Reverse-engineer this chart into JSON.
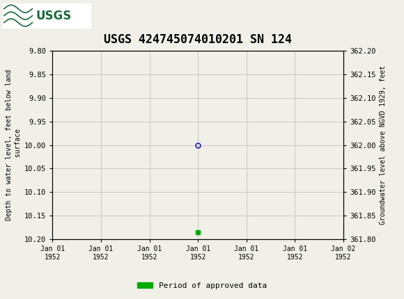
{
  "title": "USGS 424745074010201 SN 124",
  "title_fontsize": 12,
  "header_color": "#1a6b3c",
  "background_color": "#f0f0e8",
  "plot_bg_color": "#f0f0e8",
  "grid_color": "#aaaaaa",
  "ylim_left_top": 9.8,
  "ylim_left_bottom": 10.2,
  "ylim_right_top": 362.2,
  "ylim_right_bottom": 361.8,
  "ylabel_left": "Depth to water level, feet below land\n surface",
  "ylabel_right": "Groundwater level above NGVD 1929, feet",
  "yticks_left": [
    9.8,
    9.85,
    9.9,
    9.95,
    10.0,
    10.05,
    10.1,
    10.15,
    10.2
  ],
  "yticks_right": [
    362.2,
    362.15,
    362.1,
    362.05,
    362.0,
    361.95,
    361.9,
    361.85,
    361.8
  ],
  "xlim": [
    -3,
    3
  ],
  "xtick_labels": [
    "Jan 01\n1952",
    "Jan 01\n1952",
    "Jan 01\n1952",
    "Jan 01\n1952",
    "Jan 01\n1952",
    "Jan 01\n1952",
    "Jan 02\n1952"
  ],
  "xtick_positions": [
    -3,
    -2,
    -1,
    0,
    1,
    2,
    3
  ],
  "point_x": 0,
  "point_y": 10.0,
  "point_color": "#0000bb",
  "point_marker": "o",
  "point_size": 5,
  "square_x": 0,
  "square_y": 10.185,
  "square_color": "#00aa00",
  "square_size": 4,
  "legend_label": "Period of approved data",
  "legend_color": "#00aa00"
}
